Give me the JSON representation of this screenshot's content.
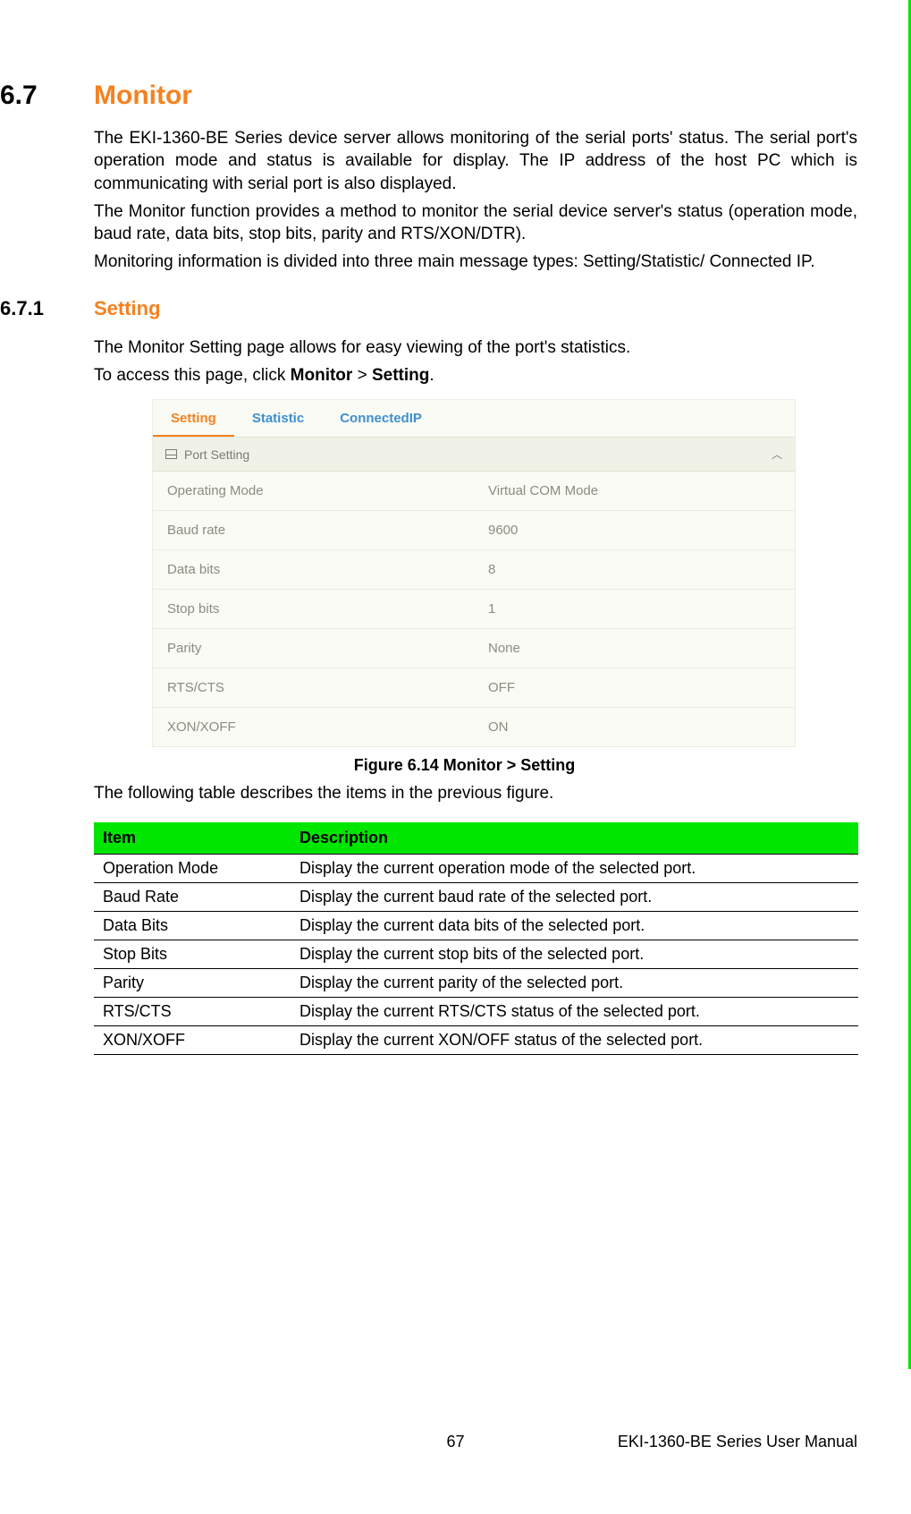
{
  "section": {
    "number": "6.7",
    "title": "Monitor",
    "para1": "The EKI-1360-BE Series device server allows monitoring of the serial ports' status. The serial port's operation mode and status is available for display. The IP address of the host PC which is communicating with serial port is also displayed.",
    "para2": "The Monitor function provides a method to monitor the serial device server's status (operation mode, baud rate, data bits, stop bits, parity and RTS/XON/DTR).",
    "para3": "Monitoring information is divided into three main message types: Setting/Statistic/ Connected IP."
  },
  "subsection": {
    "number": "6.7.1",
    "title": "Setting",
    "para1": "The Monitor Setting page allows for easy viewing of the port's statistics.",
    "para2_prefix": "To access this page, click ",
    "para2_bold1": "Monitor",
    "para2_mid": " > ",
    "para2_bold2": "Setting",
    "para2_suffix": "."
  },
  "screenshot": {
    "tabs": [
      "Setting",
      "Statistic",
      "ConnectedIP"
    ],
    "active_tab": 0,
    "panel_title": "Port Setting",
    "rows": [
      {
        "label": "Operating Mode",
        "value": "Virtual COM Mode"
      },
      {
        "label": "Baud rate",
        "value": "9600"
      },
      {
        "label": "Data bits",
        "value": "8"
      },
      {
        "label": "Stop bits",
        "value": "1"
      },
      {
        "label": "Parity",
        "value": "None"
      },
      {
        "label": "RTS/CTS",
        "value": "OFF"
      },
      {
        "label": "XON/XOFF",
        "value": "ON"
      }
    ],
    "colors": {
      "tab_active": "#f58220",
      "tab_inactive": "#3c8fd1",
      "panel_bg": "#fafbf4",
      "panel_header_bg": "#f0f2e8",
      "row_text": "#8a8d80",
      "border": "#e8eee0"
    }
  },
  "figure_caption": "Figure 6.14 Monitor > Setting",
  "table_intro": "The following table describes the items in the previous figure.",
  "desc_table": {
    "header_bg": "#00e600",
    "columns": [
      "Item",
      "Description"
    ],
    "rows": [
      [
        "Operation Mode",
        "Display the current operation mode of the selected port."
      ],
      [
        "Baud Rate",
        "Display the current baud rate of the selected port."
      ],
      [
        "Data Bits",
        "Display the current data bits of the selected port."
      ],
      [
        "Stop Bits",
        "Display the current stop bits of the selected port."
      ],
      [
        "Parity",
        "Display the current parity of the selected port."
      ],
      [
        "RTS/CTS",
        "Display the current RTS/CTS status of the selected port."
      ],
      [
        "XON/XOFF",
        "Display the current XON/OFF status of the selected port."
      ]
    ]
  },
  "footer": {
    "page": "67",
    "manual": "EKI-1360-BE Series User Manual"
  }
}
